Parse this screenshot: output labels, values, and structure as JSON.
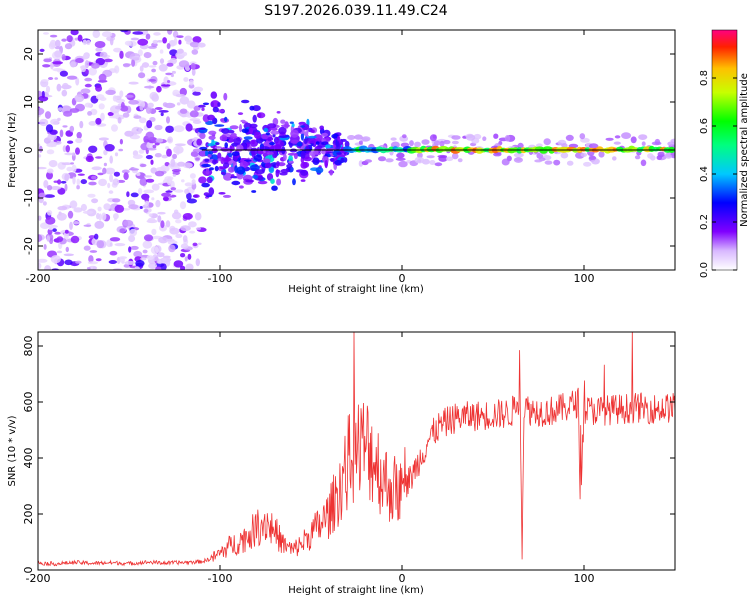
{
  "title": "S197.2026.039.11.49.C24",
  "chart_data": [
    {
      "type": "heatmap",
      "name": "spectrogram",
      "xlabel": "Height of straight line (km)",
      "ylabel": "Frequency (Hz)",
      "xlim": [
        -200,
        150
      ],
      "ylim": [
        -25,
        25
      ],
      "xticks": [
        -200,
        -100,
        0,
        100
      ],
      "yticks": [
        -20,
        -10,
        0,
        10,
        20
      ],
      "colorbar": {
        "label": "Normalized spectral amplitude",
        "range": [
          0.0,
          1.0
        ],
        "ticks": [
          0.0,
          0.2,
          0.4,
          0.6,
          0.8
        ],
        "colormap": "rainbow"
      },
      "segments": [
        {
          "x_start": -200,
          "x_end": -110,
          "description": "diffuse noise, amplitude ~0.05-0.2 across all frequencies"
        },
        {
          "x_start": -110,
          "x_end": -30,
          "description": "scattered blobs around 0 Hz (±10 Hz), amplitude ~0.2-0.4"
        },
        {
          "x_start": -30,
          "x_end": 150,
          "description": "narrow line at ~0 Hz, amplitude ~0.6-0.9"
        }
      ],
      "centerline": {
        "x": [
          -110,
          150
        ],
        "y": [
          0,
          0
        ]
      }
    },
    {
      "type": "line",
      "name": "snr",
      "xlabel": "Height of straight line (km)",
      "ylabel": "SNR (10 * v/v)",
      "xlim": [
        -200,
        150
      ],
      "ylim": [
        0,
        850
      ],
      "xticks": [
        -200,
        -100,
        0,
        100
      ],
      "yticks": [
        0,
        200,
        400,
        600,
        800
      ],
      "series": [
        {
          "name": "SNR",
          "color": "#ee3333",
          "x": [
            -200,
            -190,
            -180,
            -170,
            -160,
            -150,
            -140,
            -130,
            -120,
            -110,
            -105,
            -100,
            -95,
            -90,
            -85,
            -80,
            -75,
            -70,
            -65,
            -60,
            -55,
            -50,
            -45,
            -40,
            -35,
            -30,
            -25,
            -20,
            -15,
            -10,
            -5,
            0,
            5,
            10,
            15,
            20,
            25,
            30,
            40,
            50,
            60,
            65,
            66,
            67,
            70,
            80,
            90,
            97,
            98,
            100,
            110,
            120,
            130,
            140,
            150
          ],
          "values": [
            25,
            22,
            27,
            24,
            26,
            23,
            28,
            25,
            27,
            30,
            40,
            60,
            85,
            100,
            120,
            150,
            175,
            140,
            90,
            70,
            95,
            130,
            160,
            200,
            280,
            380,
            430,
            440,
            400,
            320,
            290,
            280,
            330,
            400,
            470,
            510,
            530,
            545,
            550,
            555,
            560,
            620,
            50,
            590,
            570,
            565,
            580,
            600,
            250,
            570,
            570,
            575,
            580,
            575,
            580
          ]
        }
      ]
    }
  ]
}
